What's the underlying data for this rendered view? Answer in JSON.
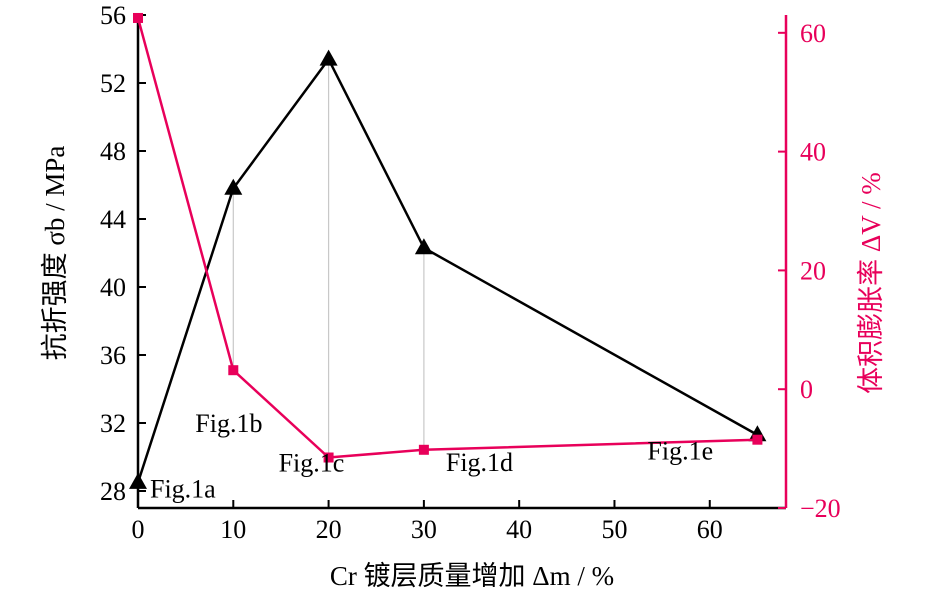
{
  "chart_data": {
    "type": "line",
    "xlabel": "Cr 镀层质量增加 Δm / %",
    "ylabel_left": "抗折强度 σb / MPa",
    "ylabel_right": "体积膨胀率 ΔV / %",
    "x_ticks": [
      "0",
      "10",
      "20",
      "30",
      "40",
      "50",
      "60"
    ],
    "y_left_ticks": [
      "28",
      "32",
      "36",
      "40",
      "44",
      "48",
      "52",
      "56"
    ],
    "y_right_ticks": [
      "−20",
      "0",
      "20",
      "40",
      "60"
    ],
    "xlim": [
      0,
      68
    ],
    "ylim_left": [
      27,
      56
    ],
    "ylim_right": [
      -20,
      63
    ],
    "series": [
      {
        "axis": "left",
        "color": "#000000",
        "marker": "triangle",
        "x": [
          0,
          10,
          20,
          30,
          65
        ],
        "y": [
          28.5,
          45.8,
          53.4,
          42.3,
          31.3
        ]
      },
      {
        "axis": "right",
        "color": "#e8005a",
        "marker": "square",
        "x": [
          0,
          10,
          20,
          30,
          65
        ],
        "y": [
          62.5,
          3.2,
          -11.5,
          -10.2,
          -8.5
        ]
      }
    ],
    "annotations": [
      {
        "text": "Fig.1a",
        "x": 0,
        "y": 28.5
      },
      {
        "text": "Fig.1b",
        "x": 10,
        "y": 45.8
      },
      {
        "text": "Fig.1c",
        "x": 20,
        "y": 53.4
      },
      {
        "text": "Fig.1d",
        "x": 30,
        "y": 42.3
      },
      {
        "text": "Fig.1e",
        "x": 65,
        "y": 31.3
      }
    ],
    "guide_lines_x": [
      10,
      20,
      30
    ]
  }
}
